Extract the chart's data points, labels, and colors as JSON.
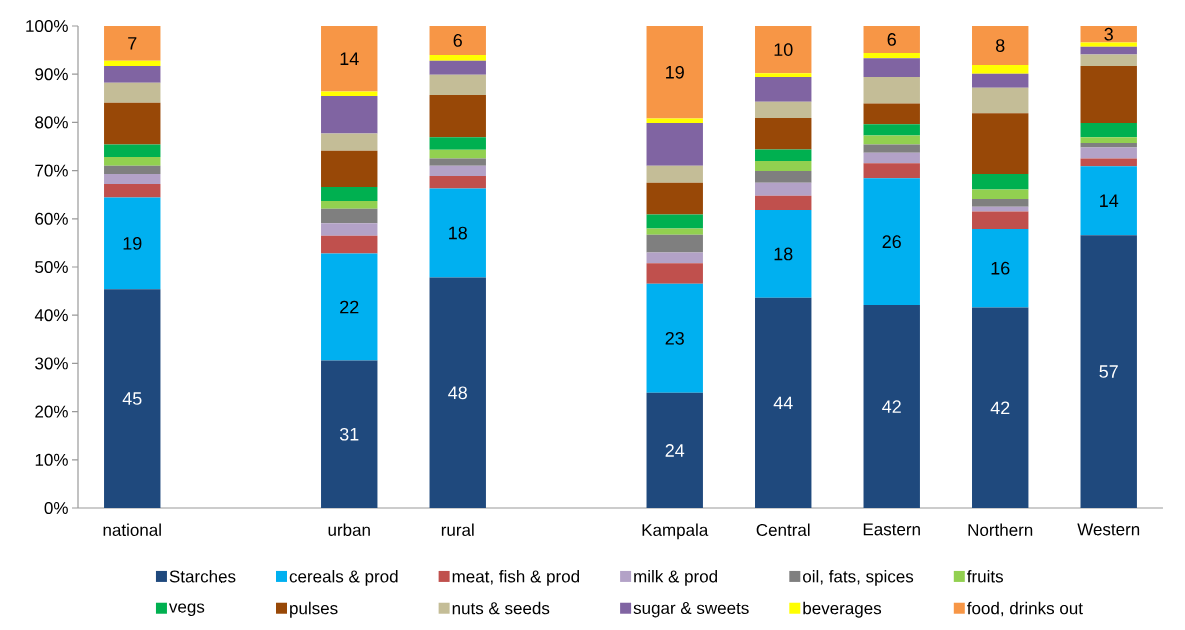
{
  "chart_data": {
    "type": "bar",
    "stacked": true,
    "legend": "bottom",
    "categories": [
      "national",
      null,
      "urban",
      "rural",
      null,
      "Kampala",
      "Central",
      "Eastern",
      "Northern",
      "Western"
    ],
    "ylim": [
      0,
      100
    ],
    "yticks": [
      {
        "value": 0,
        "label": "0%"
      },
      {
        "value": 10,
        "label": "10%"
      },
      {
        "value": 20,
        "label": "20%"
      },
      {
        "value": 30,
        "label": "30%"
      },
      {
        "value": 40,
        "label": "40%"
      },
      {
        "value": 50,
        "label": "50%"
      },
      {
        "value": 60,
        "label": "60%"
      },
      {
        "value": 70,
        "label": "70%"
      },
      {
        "value": 80,
        "label": "80%"
      },
      {
        "value": 90,
        "label": "90%"
      },
      {
        "value": 100,
        "label": "100%"
      }
    ],
    "series": [
      {
        "name": "Starches",
        "color": "#1f497d",
        "values": [
          45.4,
          null,
          30.6,
          47.8,
          null,
          23.9,
          43.6,
          42.1,
          41.6,
          56.6
        ],
        "value_labels": [
          "45",
          null,
          "31",
          "48",
          null,
          "24",
          "44",
          "42",
          "42",
          "57"
        ]
      },
      {
        "name": "cereals & prod",
        "color": "#00b0f0",
        "values": [
          19.0,
          null,
          22.2,
          18.5,
          null,
          22.6,
          18.2,
          26.3,
          16.3,
          14.3
        ],
        "value_labels": [
          "19",
          null,
          "22",
          "18",
          null,
          "23",
          "18",
          "26",
          "16",
          "14"
        ]
      },
      {
        "name": "meat, fish & prod",
        "color": "#c0504d",
        "values": [
          2.8,
          null,
          3.7,
          2.6,
          null,
          4.3,
          3.0,
          3.1,
          3.6,
          1.6
        ]
      },
      {
        "name": "milk & prod",
        "color": "#b3a2c7",
        "values": [
          2.1,
          null,
          2.6,
          2.1,
          null,
          2.2,
          2.7,
          2.2,
          1.0,
          2.3
        ]
      },
      {
        "name": "oil, fats, spices",
        "color": "#7f7f7f",
        "values": [
          1.7,
          null,
          3.0,
          1.5,
          null,
          3.7,
          2.4,
          1.7,
          1.6,
          0.9
        ]
      },
      {
        "name": "fruits",
        "color": "#92d050",
        "values": [
          1.8,
          null,
          1.6,
          1.8,
          null,
          1.3,
          2.1,
          1.9,
          2.0,
          1.2
        ]
      },
      {
        "name": "vegs",
        "color": "#00b050",
        "values": [
          2.6,
          null,
          2.9,
          2.6,
          null,
          2.9,
          2.4,
          2.3,
          3.2,
          3.0
        ]
      },
      {
        "name": "pulses",
        "color": "#984807",
        "values": [
          8.7,
          null,
          7.5,
          8.8,
          null,
          6.6,
          6.5,
          4.3,
          12.6,
          11.8
        ]
      },
      {
        "name": "nuts & seeds",
        "color": "#c4bd97",
        "values": [
          4.1,
          null,
          3.6,
          4.2,
          null,
          3.5,
          3.4,
          5.5,
          5.3,
          2.4
        ]
      },
      {
        "name": "sugar & sweets",
        "color": "#8064a2",
        "values": [
          3.5,
          null,
          7.8,
          2.9,
          null,
          8.9,
          5.1,
          3.9,
          2.9,
          1.6
        ]
      },
      {
        "name": "beverages",
        "color": "#ffff00",
        "values": [
          1.1,
          null,
          0.9,
          1.2,
          null,
          0.9,
          0.8,
          1.1,
          1.8,
          0.9
        ]
      },
      {
        "name": "food, drinks out",
        "color": "#f79646",
        "values": [
          7.2,
          null,
          13.6,
          6.0,
          null,
          19.2,
          9.8,
          5.6,
          8.1,
          3.4
        ],
        "value_labels": [
          "7",
          null,
          "14",
          "6",
          null,
          "19",
          "10",
          "6",
          "8",
          "3"
        ]
      }
    ]
  }
}
